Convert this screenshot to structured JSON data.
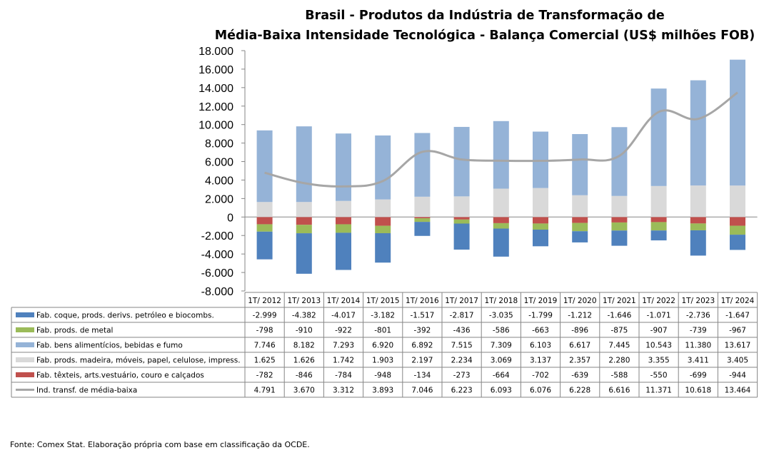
{
  "chart_data": {
    "type": "bar",
    "title": "Brasil - Produtos da Indústria de Transformação de",
    "subtitle": "Média-Baixa Intensidade Tecnológica - Balança Comercial (US$ milhões FOB)",
    "categories": [
      "1T/ 2012",
      "1T/ 2013",
      "1T/ 2014",
      "1T/ 2015",
      "1T/ 2016",
      "1T/ 2017",
      "1T/ 2018",
      "1T/ 2019",
      "1T/ 2020",
      "1T/ 2021",
      "1T/ 2022",
      "1T/ 2023",
      "1T/ 2024"
    ],
    "ylim": [
      -8000,
      18000
    ],
    "yticks": [
      18000,
      16000,
      14000,
      12000,
      10000,
      8000,
      6000,
      4000,
      2000,
      0,
      -2000,
      -4000,
      -6000,
      -8000
    ],
    "ytick_labels": [
      "18.000",
      "16.000",
      "14.000",
      "12.000",
      "10.000",
      "8.000",
      "6.000",
      "4.000",
      "2.000",
      "0",
      "-2.000",
      "-4.000",
      "-6.000",
      "-8.000"
    ],
    "grid": false,
    "legend_placement": "data-table",
    "series": [
      {
        "name": "Fab. coque, prods. derivs. petróleo e biocombs.",
        "type": "bar",
        "color": "#4f81bd",
        "values": [
          -2999,
          -4382,
          -4017,
          -3182,
          -1517,
          -2817,
          -3035,
          -1799,
          -1212,
          -1646,
          -1071,
          -2736,
          -1647
        ],
        "labels": [
          "-2.999",
          "-4.382",
          "-4.017",
          "-3.182",
          "-1.517",
          "-2.817",
          "-3.035",
          "-1.799",
          "-1.212",
          "-1.646",
          "-1.071",
          "-2.736",
          "-1.647"
        ]
      },
      {
        "name": "Fab. prods. de metal",
        "type": "bar",
        "color": "#9bbb59",
        "values": [
          -798,
          -910,
          -922,
          -801,
          -392,
          -436,
          -586,
          -663,
          -896,
          -875,
          -907,
          -739,
          -967
        ],
        "labels": [
          "-798",
          "-910",
          "-922",
          "-801",
          "-392",
          "-436",
          "-586",
          "-663",
          "-896",
          "-875",
          "-907",
          "-739",
          "-967"
        ]
      },
      {
        "name": "Fab. bens alimentícios, bebidas e fumo",
        "type": "bar",
        "color": "#95b3d7",
        "values": [
          7746,
          8182,
          7293,
          6920,
          6892,
          7515,
          7309,
          6103,
          6617,
          7445,
          10543,
          11380,
          13617
        ],
        "labels": [
          "7.746",
          "8.182",
          "7.293",
          "6.920",
          "6.892",
          "7.515",
          "7.309",
          "6.103",
          "6.617",
          "7.445",
          "10.543",
          "11.380",
          "13.617"
        ]
      },
      {
        "name": "Fab. prods. madeira, móveis, papel, celulose, impress.",
        "type": "bar",
        "color": "#d9d9d9",
        "values": [
          1625,
          1626,
          1742,
          1903,
          2197,
          2234,
          3069,
          3137,
          2357,
          2280,
          3355,
          3411,
          3405
        ],
        "labels": [
          "1.625",
          "1.626",
          "1.742",
          "1.903",
          "2.197",
          "2.234",
          "3.069",
          "3.137",
          "2.357",
          "2.280",
          "3.355",
          "3.411",
          "3.405"
        ]
      },
      {
        "name": "Fab. têxteis, arts.vestuário, couro e calçados",
        "type": "bar",
        "color": "#c0504d",
        "values": [
          -782,
          -846,
          -784,
          -948,
          -134,
          -273,
          -664,
          -702,
          -639,
          -588,
          -550,
          -699,
          -944
        ],
        "labels": [
          "-782",
          "-846",
          "-784",
          "-948",
          "-134",
          "-273",
          "-664",
          "-702",
          "-639",
          "-588",
          "-550",
          "-699",
          "-944"
        ]
      },
      {
        "name": "Ind. transf. de média-baixa",
        "type": "line",
        "color": "#a6a6a6",
        "values": [
          4791,
          3670,
          3312,
          3893,
          7046,
          6223,
          6093,
          6076,
          6228,
          6616,
          11371,
          10618,
          13464
        ],
        "labels": [
          "4.791",
          "3.670",
          "3.312",
          "3.893",
          "7.046",
          "6.223",
          "6.093",
          "6.076",
          "6.228",
          "6.616",
          "11.371",
          "10.618",
          "13.464"
        ]
      }
    ]
  },
  "source": "Fonte: Comex Stat. Elaboração própria com base em classificação da OCDE."
}
